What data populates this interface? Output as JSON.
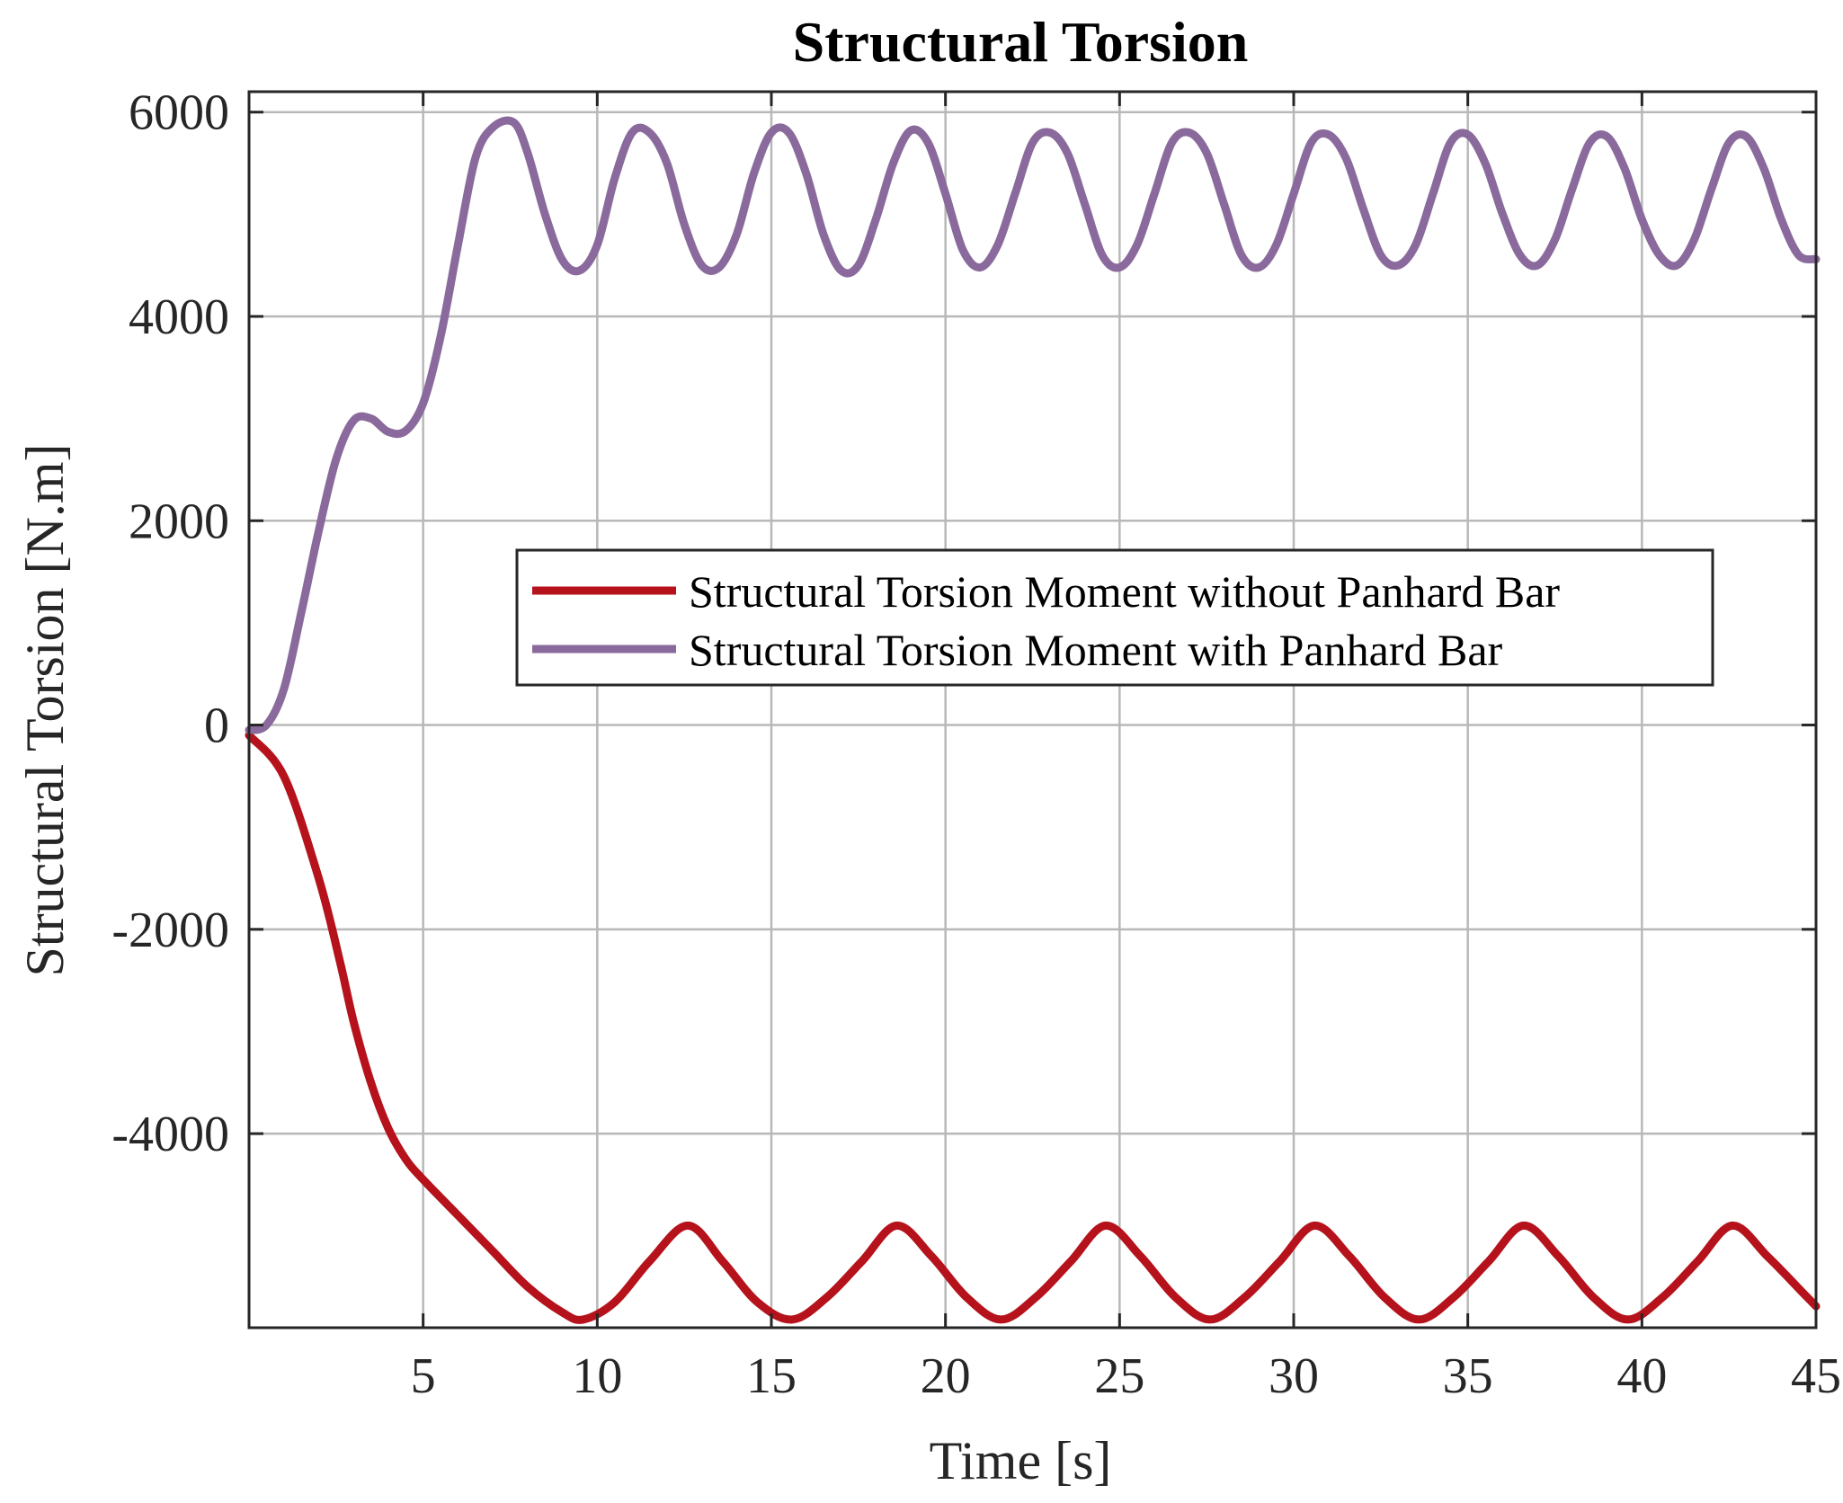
{
  "chart_data": {
    "type": "line",
    "title": "Structural Torsion",
    "xlabel": "Time [s]",
    "ylabel": "Structural Torsion [N.m]",
    "xlim": [
      0,
      45
    ],
    "ylim": [
      -5900,
      6200
    ],
    "xticks": [
      5,
      10,
      15,
      20,
      25,
      30,
      35,
      40,
      45
    ],
    "xtick_labels": [
      "5",
      "10",
      "15",
      "20",
      "25",
      "30",
      "35",
      "40",
      "45"
    ],
    "yticks": [
      6000,
      4000,
      2000,
      0,
      -2000,
      -4000
    ],
    "ytick_labels": [
      "6000",
      "4000",
      "2000",
      "0",
      "-2000",
      "-4000"
    ],
    "grid": true,
    "legend_position": "center-right",
    "series": [
      {
        "name": "Structural Torsion Moment without Panhard Bar",
        "color": "#b5121b",
        "x": [
          0,
          1,
          2,
          2.6,
          3,
          3.5,
          4,
          4.5,
          5,
          6,
          7,
          8,
          9,
          9.6,
          10.5,
          11.5,
          12.6,
          13.6,
          14.6,
          15.6,
          16.6,
          17.6,
          18.6,
          19.6,
          20.6,
          21.6,
          22.6,
          23.6,
          24.6,
          25.6,
          26.6,
          27.6,
          28.6,
          29.6,
          30.6,
          31.6,
          32.6,
          33.6,
          34.6,
          35.6,
          36.6,
          37.6,
          38.6,
          39.6,
          40.6,
          41.6,
          42.6,
          43.6,
          44.6,
          45
        ],
        "y": [
          -100,
          -500,
          -1500,
          -2300,
          -2900,
          -3500,
          -3950,
          -4250,
          -4450,
          -4800,
          -5150,
          -5500,
          -5750,
          -5820,
          -5650,
          -5250,
          -4900,
          -5250,
          -5650,
          -5820,
          -5600,
          -5250,
          -4900,
          -5200,
          -5600,
          -5820,
          -5600,
          -5250,
          -4900,
          -5200,
          -5600,
          -5820,
          -5600,
          -5250,
          -4900,
          -5200,
          -5600,
          -5820,
          -5600,
          -5250,
          -4900,
          -5200,
          -5600,
          -5820,
          -5600,
          -5250,
          -4900,
          -5200,
          -5550,
          -5690
        ]
      },
      {
        "name": "Structural Torsion Moment with Panhard Bar",
        "color": "#8a6a9c",
        "x": [
          0,
          0.5,
          1,
          1.5,
          2,
          2.5,
          3,
          3.5,
          4,
          4.5,
          5,
          5.5,
          6,
          6.5,
          7,
          7.6,
          8,
          8.5,
          9,
          9.5,
          10,
          10.5,
          11,
          11.5,
          12,
          12.5,
          13,
          13.5,
          14,
          14.5,
          15,
          15.5,
          16,
          16.5,
          17,
          17.5,
          18,
          18.5,
          19,
          19.5,
          20,
          20.5,
          21,
          21.5,
          22,
          22.5,
          23,
          23.5,
          24,
          24.5,
          25,
          25.5,
          26,
          26.5,
          27,
          27.5,
          28,
          28.5,
          29,
          29.5,
          30,
          30.5,
          31,
          31.5,
          32,
          32.5,
          33,
          33.5,
          34,
          34.5,
          35,
          35.5,
          36,
          36.5,
          37,
          37.5,
          38,
          38.5,
          39,
          39.5,
          40,
          40.5,
          41,
          41.5,
          42,
          42.5,
          43,
          43.5,
          44,
          44.5,
          45
        ],
        "y": [
          -50,
          0,
          350,
          1100,
          1900,
          2600,
          2980,
          3000,
          2870,
          2880,
          3150,
          3800,
          4700,
          5550,
          5850,
          5900,
          5600,
          5000,
          4550,
          4450,
          4700,
          5350,
          5800,
          5800,
          5500,
          4900,
          4500,
          4480,
          4800,
          5400,
          5800,
          5800,
          5400,
          4800,
          4450,
          4500,
          4950,
          5500,
          5820,
          5700,
          5200,
          4650,
          4480,
          4700,
          5200,
          5700,
          5800,
          5600,
          5100,
          4600,
          4480,
          4700,
          5200,
          5700,
          5800,
          5600,
          5100,
          4600,
          4480,
          4700,
          5200,
          5700,
          5780,
          5550,
          5050,
          4600,
          4500,
          4700,
          5200,
          5700,
          5780,
          5500,
          5000,
          4600,
          4500,
          4750,
          5250,
          5700,
          5760,
          5450,
          4950,
          4600,
          4500,
          4750,
          5250,
          5700,
          5760,
          5450,
          4950,
          4600,
          4560
        ]
      }
    ]
  }
}
